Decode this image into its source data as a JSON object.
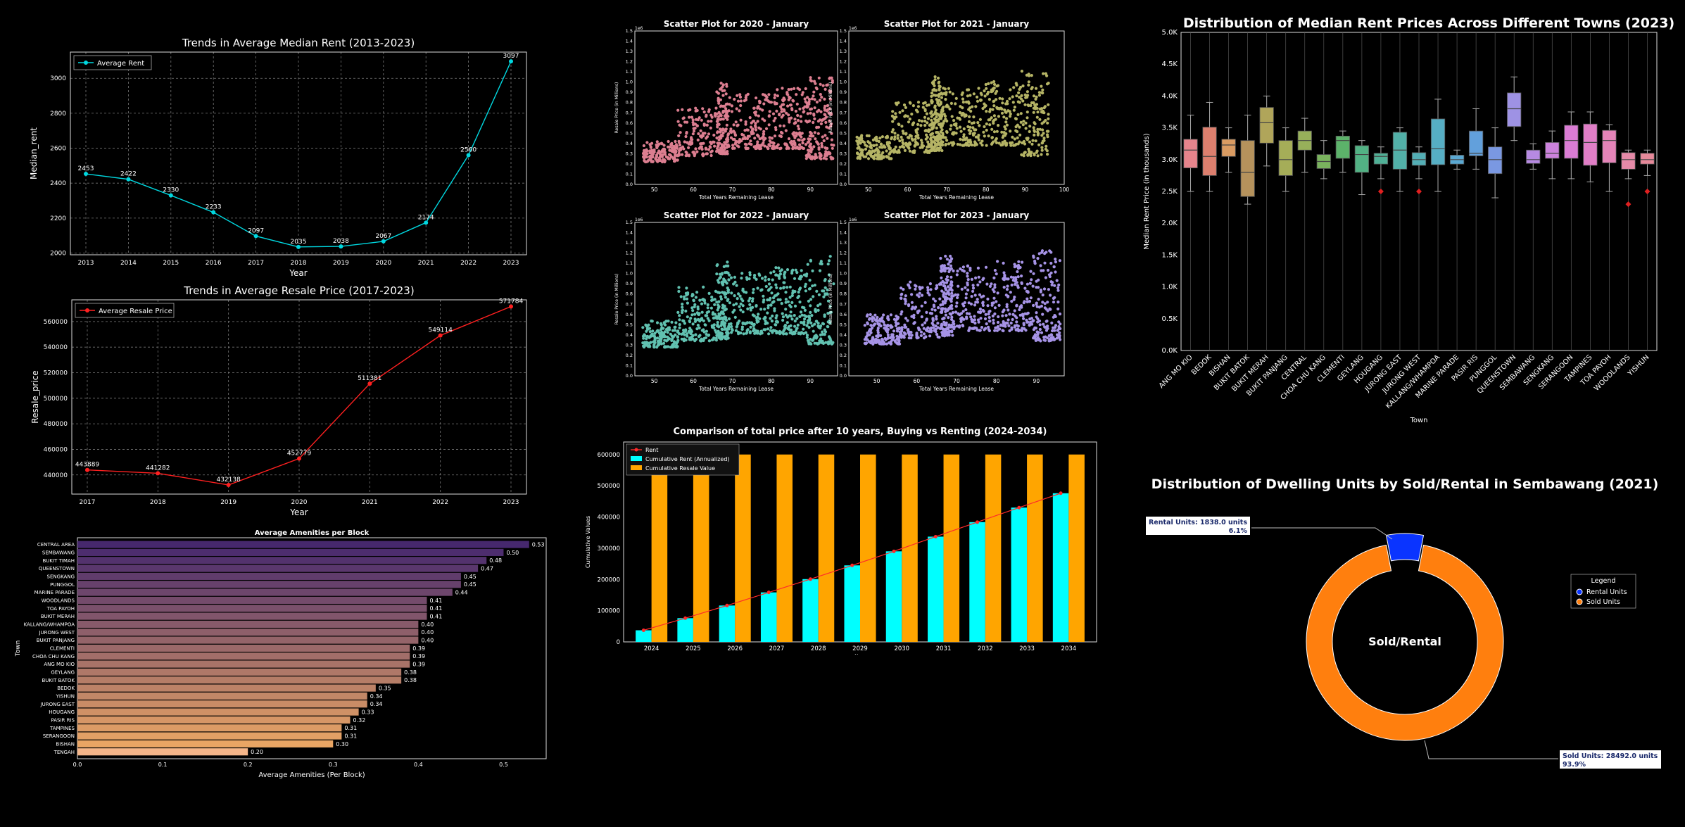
{
  "chart_data": [
    {
      "id": "rent_trend",
      "type": "line",
      "title": "Trends in Average Median Rent (2013-2023)",
      "xlabel": "Year",
      "ylabel": "Median_rent",
      "legend": "Average Rent",
      "legend_placement": "top-left",
      "grid": true,
      "x": [
        2013,
        2014,
        2015,
        2016,
        2017,
        2018,
        2019,
        2020,
        2021,
        2022,
        2023
      ],
      "values": [
        2453,
        2422,
        2330,
        2233,
        2097,
        2035,
        2038,
        2067,
        2174,
        2560,
        3097
      ],
      "point_labels": [
        "2453",
        "2422",
        "2330",
        "2233",
        "2097",
        "2035",
        "2038",
        "2067",
        "2174",
        "2560",
        "3097"
      ],
      "ylim": [
        1990,
        3150
      ],
      "yticks": [
        2000,
        2200,
        2400,
        2600,
        2800,
        3000
      ],
      "color": "#00d8e0"
    },
    {
      "id": "resale_trend",
      "type": "line",
      "title": "Trends in Average Resale Price (2017-2023)",
      "xlabel": "Year",
      "ylabel": "Resale_price",
      "legend": "Average Resale Price",
      "legend_placement": "top-left",
      "grid": true,
      "x": [
        2017,
        2018,
        2019,
        2020,
        2021,
        2022,
        2023
      ],
      "values": [
        443889,
        441282,
        432138,
        452779,
        511381,
        549114,
        571784
      ],
      "point_labels": [
        "443889",
        "441282",
        "432138",
        "452779",
        "511381",
        "549114",
        "571784"
      ],
      "ylim": [
        425000,
        577000
      ],
      "yticks": [
        440000,
        460000,
        480000,
        500000,
        520000,
        540000,
        560000
      ],
      "color": "#ff2020"
    },
    {
      "id": "amenities",
      "type": "bar",
      "orientation": "horizontal",
      "title": "Average Amenities per Block",
      "xlabel": "Average Amenities (Per Block)",
      "ylabel": "Town",
      "xlim": [
        0,
        0.55
      ],
      "xticks": [
        0.0,
        0.1,
        0.2,
        0.3,
        0.4,
        0.5
      ],
      "xtick_labels": [
        "0.0",
        "0.1",
        "0.2",
        "0.3",
        "0.4",
        "0.5"
      ],
      "categories": [
        "CENTRAL AREA",
        "SEMBAWANG",
        "BUKIT TIMAH",
        "QUEENSTOWN",
        "SENGKANG",
        "PUNGGOL",
        "MARINE PARADE",
        "WOODLANDS",
        "TOA PAYOH",
        "BUKIT MERAH",
        "KALLANG/WHAMPOA",
        "JURONG WEST",
        "BUKIT PANJANG",
        "CLEMENTI",
        "CHOA CHU KANG",
        "ANG MO KIO",
        "GEYLANG",
        "BUKIT BATOK",
        "BEDOK",
        "YISHUN",
        "JURONG EAST",
        "HOUGANG",
        "PASIR RIS",
        "TAMPINES",
        "SERANGOON",
        "BISHAN",
        "TENGAH"
      ],
      "values": [
        0.53,
        0.5,
        0.48,
        0.47,
        0.45,
        0.45,
        0.44,
        0.41,
        0.41,
        0.41,
        0.4,
        0.4,
        0.4,
        0.39,
        0.39,
        0.39,
        0.38,
        0.38,
        0.35,
        0.34,
        0.34,
        0.33,
        0.32,
        0.31,
        0.31,
        0.3,
        0.2
      ],
      "value_labels": [
        "0.53",
        "0.50",
        "0.48",
        "0.47",
        "0.45",
        "0.45",
        "0.44",
        "0.41",
        "0.41",
        "0.41",
        "0.40",
        "0.40",
        "0.40",
        "0.39",
        "0.39",
        "0.39",
        "0.38",
        "0.38",
        "0.35",
        "0.34",
        "0.34",
        "0.33",
        "0.32",
        "0.31",
        "0.31",
        "0.30",
        "0.20"
      ]
    },
    {
      "id": "scatter_grid",
      "type": "scatter",
      "xlabel": "Total Years Remaining Lease",
      "ylabel": "Resale Price (in Millions)",
      "offset_label": "1e6",
      "yticks": [
        0.0,
        0.1,
        0.2,
        0.3,
        0.4,
        0.5,
        0.6,
        0.7,
        0.8,
        0.9,
        1.0,
        1.1,
        1.2,
        1.3,
        1.4,
        1.5
      ],
      "ytick_labels": [
        "0.0",
        "0.1",
        "0.2",
        "0.3",
        "0.4",
        "0.5",
        "0.6",
        "0.7",
        "0.8",
        "0.9",
        "1.0",
        "1.1",
        "1.2",
        "1.3",
        "1.4",
        "1.5"
      ],
      "ylim": [
        0,
        1.5
      ],
      "panels": [
        {
          "title": "Scatter Plot for 2020 - January",
          "color": "#f48ca0",
          "xlim": [
            45,
            97
          ],
          "xticks": [
            50,
            60,
            70,
            80,
            90
          ],
          "xtick_labels": [
            "50",
            "60",
            "70",
            "80",
            "90"
          ]
        },
        {
          "title": "Scatter Plot for 2021 - January",
          "color": "#c9c870",
          "xlim": [
            45,
            100
          ],
          "xticks": [
            50,
            60,
            70,
            80,
            90,
            100
          ],
          "xtick_labels": [
            "50",
            "60",
            "70",
            "80",
            "90",
            "100"
          ]
        },
        {
          "title": "Scatter Plot for 2022 - January",
          "color": "#6cd6c4",
          "xlim": [
            45,
            97
          ],
          "xticks": [
            50,
            60,
            70,
            80,
            90
          ],
          "xtick_labels": [
            "50",
            "60",
            "70",
            "80",
            "90"
          ]
        },
        {
          "title": "Scatter Plot for 2023 - January",
          "color": "#b8a4ff",
          "xlim": [
            43,
            97
          ],
          "xticks": [
            50,
            60,
            70,
            80,
            90
          ],
          "xtick_labels": [
            "50",
            "60",
            "70",
            "80",
            "90"
          ]
        }
      ]
    },
    {
      "id": "buy_vs_rent",
      "type": "bar",
      "title": "Comparison of total price after 10 years, Buying vs Renting (2024-2034)",
      "xlabel": "Year",
      "ylabel": "Cumulative Values",
      "legend_placement": "top-left",
      "categories": [
        "2024",
        "2025",
        "2026",
        "2027",
        "2028",
        "2029",
        "2030",
        "2031",
        "2032",
        "2033",
        "2034"
      ],
      "ylim": [
        0,
        640000
      ],
      "yticks": [
        0,
        100000,
        200000,
        300000,
        400000,
        500000,
        600000
      ],
      "ytick_labels": [
        "0",
        "100000",
        "200000",
        "300000",
        "400000",
        "500000",
        "600000"
      ],
      "series": [
        {
          "name": "Rent",
          "kind": "line",
          "color": "#ff2a2a",
          "values": [
            37164,
            76000,
            116500,
            158500,
            201000,
            245000,
            290000,
            337000,
            383500,
            430000,
            476000
          ]
        },
        {
          "name": "Cumulative Rent (Annualized)",
          "kind": "bar",
          "color": "#00ffff",
          "values": [
            37164,
            76000,
            116500,
            158500,
            201000,
            245000,
            290000,
            337000,
            383500,
            430000,
            476000
          ]
        },
        {
          "name": "Cumulative Resale Value",
          "kind": "bar",
          "color": "#ffa500",
          "values": [
            600000,
            600000,
            600000,
            600000,
            600000,
            600000,
            600000,
            600000,
            600000,
            600000,
            600000
          ]
        }
      ]
    },
    {
      "id": "rent_boxplot",
      "type": "box",
      "title": "Distribution of Median Rent Prices Across Different Towns (2023)",
      "xlabel": "Town",
      "ylabel": "Median Rent Price (in thousands)",
      "ylim": [
        0,
        5000
      ],
      "yticks": [
        0,
        500,
        1000,
        1500,
        2000,
        2500,
        3000,
        3500,
        4000,
        4500,
        5000
      ],
      "ytick_labels": [
        "0.0K",
        "0.5K",
        "1.0K",
        "1.5K",
        "2.0K",
        "2.5K",
        "3.0K",
        "3.5K",
        "4.0K",
        "4.5K",
        "5.0K"
      ],
      "categories": [
        "ANG MO KIO",
        "BEDOK",
        "BISHAN",
        "BUKIT BATOK",
        "BUKIT MERAH",
        "BUKIT PANJANG",
        "CENTRAL",
        "CHOA CHU KANG",
        "CLEMENTI",
        "GEYLANG",
        "HOUGANG",
        "JURONG EAST",
        "JURONG WEST",
        "KALLANG/WHAMPOA",
        "MARINE PARADE",
        "PASIR RIS",
        "PUNGGOL",
        "QUEENSTOWN",
        "SEMBAWANG",
        "SENGKANG",
        "SERANGOON",
        "TAMPINES",
        "TOA PAYOH",
        "WOODLANDS",
        "YISHUN"
      ],
      "colors": [
        "#e6848c",
        "#dc7f6e",
        "#d99b62",
        "#b5925c",
        "#b0a55a",
        "#a5ad58",
        "#97b05a",
        "#7ab35e",
        "#5cb26a",
        "#52b284",
        "#50b096",
        "#52b0a8",
        "#53aeb5",
        "#56aec4",
        "#5aa8d2",
        "#62a0dc",
        "#7a98e2",
        "#9e92e4",
        "#b68ae2",
        "#cc82dc",
        "#da7cd4",
        "#e07ec6",
        "#e484b8",
        "#e58aa8",
        "#e6899a"
      ],
      "boxes": [
        {
          "min": 2500,
          "q1": 2870,
          "med": 3150,
          "q3": 3320,
          "max": 3700
        },
        {
          "min": 2500,
          "q1": 2750,
          "med": 3050,
          "q3": 3510,
          "max": 3900
        },
        {
          "min": 2800,
          "q1": 3050,
          "med": 3230,
          "q3": 3320,
          "max": 3500
        },
        {
          "min": 2300,
          "q1": 2420,
          "med": 2800,
          "q3": 3300,
          "max": 3700
        },
        {
          "min": 2900,
          "q1": 3260,
          "med": 3580,
          "q3": 3820,
          "max": 4000
        },
        {
          "min": 2500,
          "q1": 2750,
          "med": 3000,
          "q3": 3300,
          "max": 3500
        },
        {
          "min": 2800,
          "q1": 3150,
          "med": 3300,
          "q3": 3450,
          "max": 3650
        },
        {
          "min": 2700,
          "q1": 2860,
          "med": 2970,
          "q3": 3080,
          "max": 3300
        },
        {
          "min": 2800,
          "q1": 3020,
          "med": 3300,
          "q3": 3370,
          "max": 3450
        },
        {
          "min": 2450,
          "q1": 2800,
          "med": 3080,
          "q3": 3220,
          "max": 3300
        },
        {
          "min": 2700,
          "q1": 2930,
          "med": 3050,
          "q3": 3100,
          "max": 3200,
          "outliers": [
            2500
          ]
        },
        {
          "min": 2500,
          "q1": 2850,
          "med": 3150,
          "q3": 3430,
          "max": 3500
        },
        {
          "min": 2700,
          "q1": 2910,
          "med": 3000,
          "q3": 3110,
          "max": 3200,
          "outliers": [
            2500
          ]
        },
        {
          "min": 2500,
          "q1": 2920,
          "med": 3170,
          "q3": 3640,
          "max": 3950
        },
        {
          "min": 2850,
          "q1": 2930,
          "med": 3000,
          "q3": 3070,
          "max": 3150
        },
        {
          "min": 2850,
          "q1": 3060,
          "med": 3100,
          "q3": 3450,
          "max": 3800
        },
        {
          "min": 2400,
          "q1": 2780,
          "med": 3000,
          "q3": 3200,
          "max": 3500
        },
        {
          "min": 3300,
          "q1": 3520,
          "med": 3800,
          "q3": 4050,
          "max": 4300
        },
        {
          "min": 2850,
          "q1": 2940,
          "med": 3000,
          "q3": 3150,
          "max": 3250
        },
        {
          "min": 2700,
          "q1": 3020,
          "med": 3100,
          "q3": 3270,
          "max": 3450
        },
        {
          "min": 2700,
          "q1": 3020,
          "med": 3300,
          "q3": 3540,
          "max": 3750
        },
        {
          "min": 2650,
          "q1": 2910,
          "med": 3270,
          "q3": 3560,
          "max": 3750
        },
        {
          "min": 2500,
          "q1": 2950,
          "med": 3300,
          "q3": 3460,
          "max": 3550
        },
        {
          "min": 2700,
          "q1": 2850,
          "med": 3000,
          "q3": 3110,
          "max": 3150,
          "outliers": [
            2300
          ]
        },
        {
          "min": 2750,
          "q1": 2930,
          "med": 3000,
          "q3": 3100,
          "max": 3150,
          "outliers": [
            2500
          ]
        }
      ]
    },
    {
      "id": "dwelling_donut",
      "type": "pie",
      "title": "Distribution of Dwelling Units by Sold/Rental in Sembawang (2021)",
      "center_label": "Sold/Rental",
      "legend_title": "Legend",
      "legend_placement": "right",
      "slices": [
        {
          "name": "Rental Units",
          "value": 1838.0,
          "percent": 6.1,
          "color": "#0a34ff",
          "label": "Rental Units: 1838.0 units",
          "pct_label": "6.1%"
        },
        {
          "name": "Sold Units",
          "value": 28492.0,
          "percent": 93.9,
          "color": "#ff7f0e",
          "label": "Sold Units: 28492.0 units",
          "pct_label": "93.9%"
        }
      ]
    }
  ]
}
